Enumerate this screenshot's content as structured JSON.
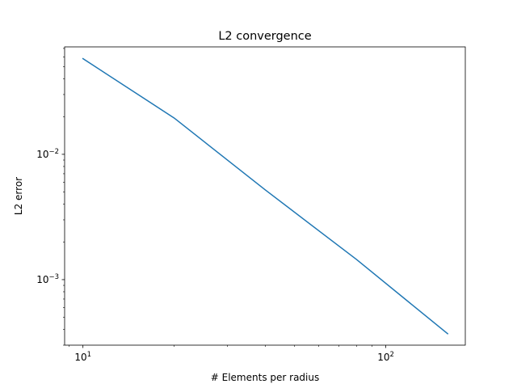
{
  "chart_data": {
    "type": "line",
    "title": "L2 convergence",
    "xlabel": "# Elements per radius",
    "ylabel": "L2 error",
    "xscale": "log",
    "yscale": "log",
    "xlim": [
      8.7,
      183
    ],
    "ylim": [
      0.0003,
      0.072
    ],
    "grid": false,
    "x_major_ticks": [
      {
        "value": 10,
        "base": "10",
        "exp": "1"
      },
      {
        "value": 100,
        "base": "10",
        "exp": "2"
      }
    ],
    "y_major_ticks": [
      {
        "value": 0.001,
        "base": "10",
        "exp": "−3"
      },
      {
        "value": 0.01,
        "base": "10",
        "exp": "−2"
      }
    ],
    "series": [
      {
        "color": "#1f77b4",
        "x": [
          10,
          20,
          40,
          80,
          160
        ],
        "y": [
          0.058,
          0.0195,
          0.0052,
          0.00145,
          0.00037
        ]
      }
    ]
  }
}
